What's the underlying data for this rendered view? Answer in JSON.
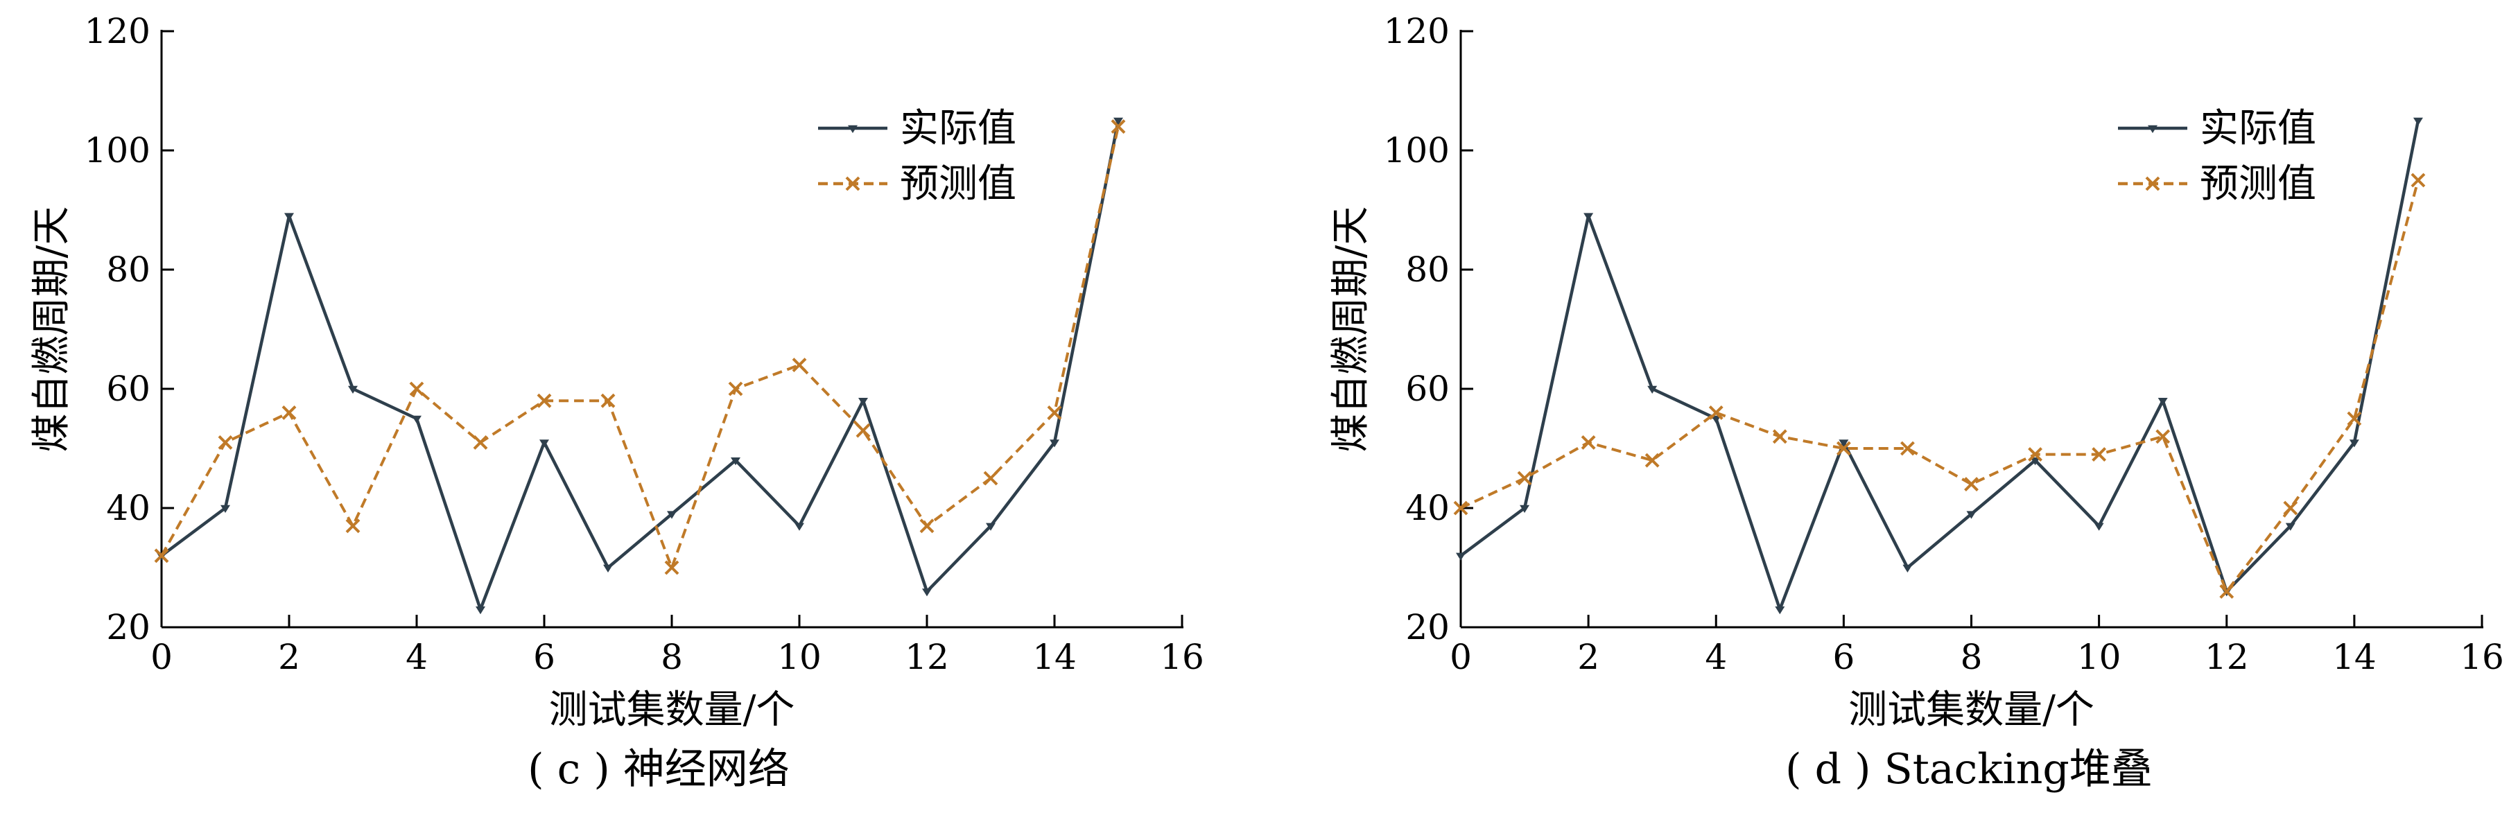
{
  "figure": {
    "panels_count": 2
  },
  "chart_data": [
    {
      "type": "line",
      "caption": "( c ) 神经网络",
      "xlabel": "测试集数量/个",
      "ylabel": "煤自燃周期/天",
      "xlim": [
        0,
        16
      ],
      "ylim": [
        20,
        120
      ],
      "xticks": [
        0,
        2,
        4,
        6,
        8,
        10,
        12,
        14,
        16
      ],
      "yticks": [
        20,
        40,
        60,
        80,
        100,
        120
      ],
      "x": [
        0,
        1,
        2,
        3,
        4,
        5,
        6,
        7,
        8,
        9,
        10,
        11,
        12,
        13,
        14,
        15
      ],
      "legend_position": "top-right",
      "grid": false,
      "series": [
        {
          "name": "实际值",
          "color": "#2e3f4c",
          "line_style": "solid",
          "marker": "triangle-down",
          "values": [
            32,
            40,
            89,
            60,
            55,
            23,
            51,
            30,
            39,
            48,
            37,
            58,
            26,
            37,
            51,
            105
          ]
        },
        {
          "name": "预测值",
          "color": "#c07a28",
          "line_style": "dashed",
          "marker": "x",
          "values": [
            32,
            51,
            56,
            37,
            60,
            51,
            58,
            58,
            30,
            60,
            64,
            53,
            37,
            45,
            56,
            104
          ]
        }
      ]
    },
    {
      "type": "line",
      "caption": "( d ) Stacking堆叠",
      "xlabel": "测试集数量/个",
      "ylabel": "煤自燃周期/天",
      "xlim": [
        0,
        16
      ],
      "ylim": [
        20,
        120
      ],
      "xticks": [
        0,
        2,
        4,
        6,
        8,
        10,
        12,
        14,
        16
      ],
      "yticks": [
        20,
        40,
        60,
        80,
        100,
        120
      ],
      "x": [
        0,
        1,
        2,
        3,
        4,
        5,
        6,
        7,
        8,
        9,
        10,
        11,
        12,
        13,
        14,
        15
      ],
      "legend_position": "top-right",
      "grid": false,
      "series": [
        {
          "name": "实际值",
          "color": "#2e3f4c",
          "line_style": "solid",
          "marker": "triangle-down",
          "values": [
            32,
            40,
            89,
            60,
            55,
            23,
            51,
            30,
            39,
            48,
            37,
            58,
            26,
            37,
            51,
            105
          ]
        },
        {
          "name": "预测值",
          "color": "#c07a28",
          "line_style": "dashed",
          "marker": "x",
          "values": [
            40,
            45,
            51,
            48,
            56,
            52,
            50,
            50,
            44,
            49,
            49,
            52,
            26,
            40,
            55,
            95
          ]
        }
      ]
    }
  ]
}
